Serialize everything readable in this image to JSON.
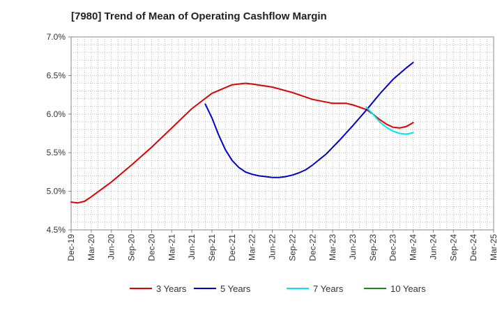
{
  "chart_data": {
    "type": "line",
    "title": "[7980]  Trend of Mean of Operating Cashflow Margin",
    "xlabel": "",
    "ylabel": "",
    "ylim": [
      4.5,
      7.0
    ],
    "y_ticks": [
      "4.5%",
      "5.0%",
      "5.5%",
      "6.0%",
      "6.5%",
      "7.0%"
    ],
    "x_tick_labels": [
      "Dec-19",
      "Mar-20",
      "Jun-20",
      "Sep-20",
      "Dec-20",
      "Mar-21",
      "Jun-21",
      "Sep-21",
      "Dec-21",
      "Mar-22",
      "Jun-22",
      "Sep-22",
      "Dec-22",
      "Mar-23",
      "Jun-23",
      "Sep-23",
      "Dec-23",
      "Mar-24",
      "Jun-24",
      "Sep-24",
      "Dec-24",
      "Mar-25"
    ],
    "grid": true,
    "legend_position": "bottom",
    "series": [
      {
        "name": "3 Years",
        "color": "#e00000",
        "points": [
          [
            "Dec-19",
            4.86
          ],
          [
            "Jan-20",
            4.85
          ],
          [
            "Feb-20",
            4.87
          ],
          [
            "Mar-20",
            4.93
          ],
          [
            "Jun-20",
            5.12
          ],
          [
            "Sep-20",
            5.34
          ],
          [
            "Dec-20",
            5.57
          ],
          [
            "Mar-21",
            5.82
          ],
          [
            "Jun-21",
            6.07
          ],
          [
            "Sep-21",
            6.27
          ],
          [
            "Dec-21",
            6.38
          ],
          [
            "Feb-22",
            6.4
          ],
          [
            "Mar-22",
            6.39
          ],
          [
            "Jun-22",
            6.35
          ],
          [
            "Sep-22",
            6.28
          ],
          [
            "Dec-22",
            6.19
          ],
          [
            "Mar-23",
            6.14
          ],
          [
            "May-23",
            6.14
          ],
          [
            "Jun-23",
            6.12
          ],
          [
            "Aug-23",
            6.06
          ],
          [
            "Sep-23",
            6.0
          ],
          [
            "Oct-23",
            5.93
          ],
          [
            "Nov-23",
            5.87
          ],
          [
            "Dec-23",
            5.83
          ],
          [
            "Jan-24",
            5.82
          ],
          [
            "Feb-24",
            5.84
          ],
          [
            "Mar-24",
            5.89
          ]
        ]
      },
      {
        "name": "5 Years",
        "color": "#0000cc",
        "points": [
          [
            "Aug-21",
            6.13
          ],
          [
            "Sep-21",
            5.95
          ],
          [
            "Oct-21",
            5.73
          ],
          [
            "Nov-21",
            5.54
          ],
          [
            "Dec-21",
            5.4
          ],
          [
            "Jan-22",
            5.31
          ],
          [
            "Feb-22",
            5.25
          ],
          [
            "Mar-22",
            5.22
          ],
          [
            "Apr-22",
            5.2
          ],
          [
            "May-22",
            5.19
          ],
          [
            "Jun-22",
            5.18
          ],
          [
            "Jul-22",
            5.18
          ],
          [
            "Aug-22",
            5.19
          ],
          [
            "Sep-22",
            5.21
          ],
          [
            "Oct-22",
            5.24
          ],
          [
            "Nov-22",
            5.28
          ],
          [
            "Dec-22",
            5.34
          ],
          [
            "Feb-23",
            5.48
          ],
          [
            "Apr-23",
            5.66
          ],
          [
            "Jun-23",
            5.85
          ],
          [
            "Aug-23",
            6.05
          ],
          [
            "Oct-23",
            6.26
          ],
          [
            "Dec-23",
            6.45
          ],
          [
            "Feb-24",
            6.6
          ],
          [
            "Mar-24",
            6.67
          ]
        ]
      },
      {
        "name": "7 Years",
        "color": "#00e5ee",
        "points": [
          [
            "Aug-23",
            6.09
          ],
          [
            "Sep-23",
            6.0
          ],
          [
            "Oct-23",
            5.9
          ],
          [
            "Nov-23",
            5.83
          ],
          [
            "Dec-23",
            5.78
          ],
          [
            "Jan-24",
            5.75
          ],
          [
            "Feb-24",
            5.74
          ],
          [
            "Mar-24",
            5.76
          ]
        ]
      },
      {
        "name": "10 Years",
        "color": "#1a8a1a",
        "points": []
      }
    ]
  }
}
